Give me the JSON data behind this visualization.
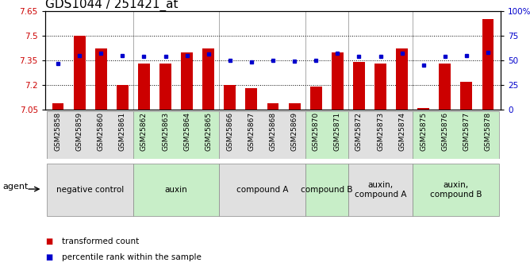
{
  "title": "GDS1044 / 251421_at",
  "samples": [
    "GSM25858",
    "GSM25859",
    "GSM25860",
    "GSM25861",
    "GSM25862",
    "GSM25863",
    "GSM25864",
    "GSM25865",
    "GSM25866",
    "GSM25867",
    "GSM25868",
    "GSM25869",
    "GSM25870",
    "GSM25871",
    "GSM25872",
    "GSM25873",
    "GSM25874",
    "GSM25875",
    "GSM25876",
    "GSM25877",
    "GSM25878"
  ],
  "bar_values": [
    7.09,
    7.5,
    7.42,
    7.2,
    7.33,
    7.33,
    7.4,
    7.42,
    7.2,
    7.18,
    7.09,
    7.09,
    7.19,
    7.4,
    7.34,
    7.33,
    7.42,
    7.06,
    7.33,
    7.22,
    7.6
  ],
  "dot_values": [
    47,
    55,
    57,
    55,
    54,
    54,
    55,
    56,
    50,
    48,
    50,
    49,
    50,
    57,
    54,
    54,
    57,
    45,
    54,
    55,
    58
  ],
  "ylim_left": [
    7.05,
    7.65
  ],
  "ylim_right": [
    0,
    100
  ],
  "yticks_left": [
    7.05,
    7.2,
    7.35,
    7.5,
    7.65
  ],
  "ytick_labels_left": [
    "7.05",
    "7.2",
    "7.35",
    "7.5",
    "7.65"
  ],
  "yticks_right": [
    0,
    25,
    50,
    75,
    100
  ],
  "ytick_labels_right": [
    "0",
    "25",
    "50",
    "75",
    "100%"
  ],
  "hlines": [
    7.2,
    7.35,
    7.5
  ],
  "bar_color": "#cc0000",
  "dot_color": "#0000cc",
  "bar_width": 0.55,
  "groups": [
    {
      "label": "negative control",
      "start": 0,
      "end": 3,
      "color": "#e0e0e0"
    },
    {
      "label": "auxin",
      "start": 4,
      "end": 7,
      "color": "#c8eec8"
    },
    {
      "label": "compound A",
      "start": 8,
      "end": 11,
      "color": "#e0e0e0"
    },
    {
      "label": "compound B",
      "start": 12,
      "end": 13,
      "color": "#c8eec8"
    },
    {
      "label": "auxin,\ncompound A",
      "start": 14,
      "end": 16,
      "color": "#e0e0e0"
    },
    {
      "label": "auxin,\ncompound B",
      "start": 17,
      "end": 20,
      "color": "#c8eec8"
    }
  ],
  "group_boundaries": [
    3.5,
    7.5,
    11.5,
    13.5,
    16.5
  ],
  "legend_items": [
    {
      "label": "transformed count",
      "color": "#cc0000"
    },
    {
      "label": "percentile rank within the sample",
      "color": "#0000cc"
    }
  ],
  "agent_label": "agent",
  "left_tick_color": "#cc0000",
  "right_tick_color": "#0000cc",
  "title_fontsize": 11,
  "tick_fontsize": 7.5,
  "group_label_fontsize": 7.5,
  "gsm_fontsize": 6.5,
  "legend_fontsize": 7.5
}
